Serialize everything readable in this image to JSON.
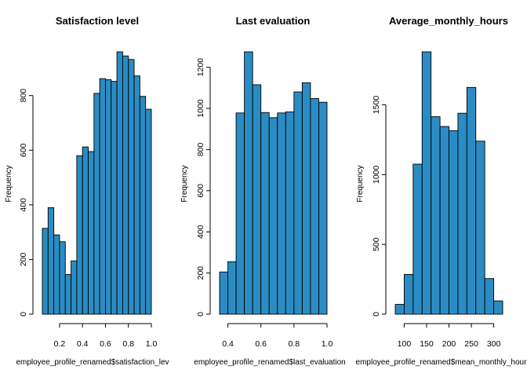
{
  "bar_color": "#2b8cc4",
  "chart_data": [
    {
      "type": "bar",
      "title": "Satisfaction level",
      "xlabel": "employee_profile_renamed$satisfaction_lev",
      "ylabel": "Frequency",
      "bin_edges": [
        0.05,
        0.1,
        0.15,
        0.2,
        0.25,
        0.3,
        0.35,
        0.4,
        0.45,
        0.5,
        0.55,
        0.6,
        0.65,
        0.7,
        0.75,
        0.8,
        0.85,
        0.9,
        0.95,
        1.0
      ],
      "values": [
        314,
        390,
        290,
        265,
        145,
        195,
        580,
        612,
        595,
        808,
        862,
        858,
        852,
        960,
        945,
        932,
        872,
        797,
        750
      ],
      "xlim": [
        0.05,
        1.0
      ],
      "xticks": [
        0.2,
        0.4,
        0.6,
        0.8,
        1.0
      ],
      "xtick_labels": [
        "0.2",
        "0.4",
        "0.6",
        "0.8",
        "1.0"
      ],
      "ylim": [
        0,
        960
      ],
      "yticks": [
        0,
        200,
        400,
        600,
        800
      ],
      "ytick_labels": [
        "0",
        "200",
        "400",
        "600",
        "800"
      ]
    },
    {
      "type": "bar",
      "title": "Last evaluation",
      "xlabel": "employee_profile_renamed$last_evaluation",
      "ylabel": "Frequency",
      "bin_edges": [
        0.35,
        0.4,
        0.45,
        0.5,
        0.55,
        0.6,
        0.65,
        0.7,
        0.75,
        0.8,
        0.85,
        0.9,
        0.95,
        1.0
      ],
      "values": [
        205,
        255,
        978,
        1275,
        1115,
        980,
        955,
        978,
        983,
        1080,
        1125,
        1048,
        1030
      ],
      "xlim": [
        0.35,
        1.0
      ],
      "xticks": [
        0.4,
        0.6,
        0.8,
        1.0
      ],
      "xtick_labels": [
        "0.4",
        "0.6",
        "0.8",
        "1.0"
      ],
      "ylim": [
        0,
        1275
      ],
      "yticks": [
        0,
        200,
        400,
        600,
        800,
        1000,
        1200
      ],
      "ytick_labels": [
        "0",
        "200",
        "400",
        "600",
        "800",
        "1000",
        "1200"
      ]
    },
    {
      "type": "bar",
      "title": "Average_monthly_hours",
      "xlabel": "employee_profile_renamed$mean_monthly_hours",
      "ylabel": "Frequency",
      "bin_edges": [
        80,
        100,
        120,
        140,
        160,
        180,
        200,
        220,
        240,
        260,
        280,
        300,
        320
      ],
      "values": [
        70,
        285,
        1075,
        1880,
        1415,
        1345,
        1315,
        1440,
        1625,
        1240,
        255,
        95
      ],
      "xlim": [
        80,
        320
      ],
      "xticks": [
        100,
        150,
        200,
        250,
        300
      ],
      "xtick_labels": [
        "100",
        "150",
        "200",
        "250",
        "300"
      ],
      "ylim": [
        0,
        1880
      ],
      "yticks": [
        0,
        500,
        1000,
        1500
      ],
      "ytick_labels": [
        "0",
        "500",
        "1000",
        "1500"
      ]
    }
  ]
}
